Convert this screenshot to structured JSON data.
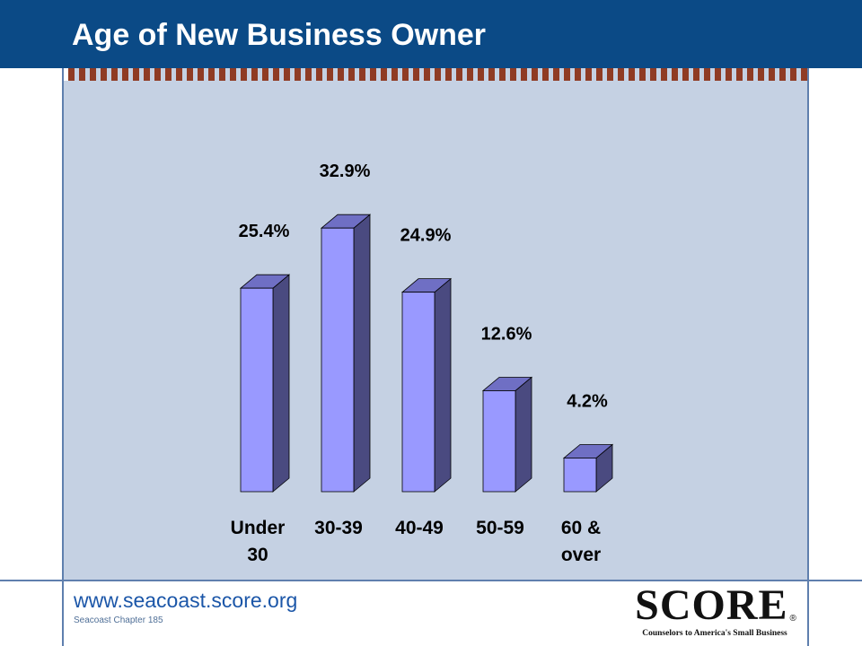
{
  "slide": {
    "title": "Age of New Business Owner",
    "website": "www.seacoast.score.org",
    "chapter": "Seacoast Chapter 185"
  },
  "logo": {
    "name": "SCORE",
    "registered_mark": "®",
    "tagline": "Counselors to America's Small Business"
  },
  "colors": {
    "title_bar": "#0b4a86",
    "panel": "#c5d1e3",
    "bar_front": "#9999ff",
    "bar_side": "#4a4a80",
    "bar_top": "#6f6fc4",
    "accent_strip": "#8f3b24",
    "website_text": "#1b56a8"
  },
  "chart_data": {
    "type": "bar",
    "style": "3d",
    "title": "",
    "xlabel": "",
    "ylabel": "",
    "ylim": [
      0,
      35
    ],
    "grid": false,
    "legend": "none",
    "categories": [
      [
        "Under",
        "30"
      ],
      [
        "30-39"
      ],
      [
        "40-49"
      ],
      [
        "50-59"
      ],
      [
        "60 &",
        "over"
      ]
    ],
    "values": [
      25.4,
      32.9,
      24.9,
      12.6,
      4.2
    ],
    "data_labels": [
      "25.4%",
      "32.9%",
      "24.9%",
      "12.6%",
      "4.2%"
    ]
  }
}
